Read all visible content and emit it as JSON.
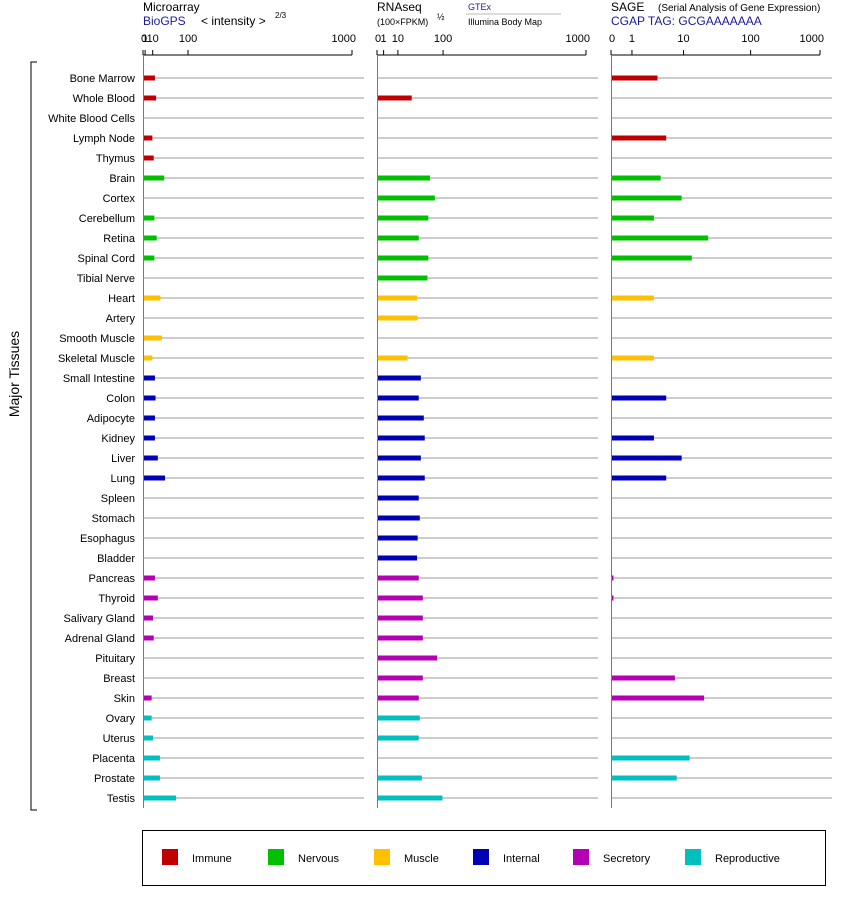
{
  "chart_data": {
    "type": "bar",
    "group_label": "Major Tissues",
    "categories": [
      "Bone Marrow",
      "Whole Blood",
      "White Blood Cells",
      "Lymph Node",
      "Thymus",
      "Brain",
      "Cortex",
      "Cerebellum",
      "Retina",
      "Spinal Cord",
      "Tibial Nerve",
      "Heart",
      "Artery",
      "Smooth Muscle",
      "Skeletal Muscle",
      "Small Intestine",
      "Colon",
      "Adipocyte",
      "Kidney",
      "Liver",
      "Lung",
      "Spleen",
      "Stomach",
      "Esophagus",
      "Bladder",
      "Pancreas",
      "Thyroid",
      "Salivary Gland",
      "Adrenal Gland",
      "Pituitary",
      "Breast",
      "Skin",
      "Ovary",
      "Uterus",
      "Placenta",
      "Prostate",
      "Testis"
    ],
    "category_groups": [
      "Immune",
      "Immune",
      "Immune",
      "Immune",
      "Immune",
      "Nervous",
      "Nervous",
      "Nervous",
      "Nervous",
      "Nervous",
      "Nervous",
      "Muscle",
      "Muscle",
      "Muscle",
      "Muscle",
      "Internal",
      "Internal",
      "Internal",
      "Internal",
      "Internal",
      "Internal",
      "Internal",
      "Internal",
      "Internal",
      "Internal",
      "Secretory",
      "Secretory",
      "Secretory",
      "Secretory",
      "Secretory",
      "Secretory",
      "Secretory",
      "Reproductive",
      "Reproductive",
      "Reproductive",
      "Reproductive",
      "Reproductive"
    ],
    "group_colors": {
      "Immune": "#c00000",
      "Nervous": "#00c000",
      "Muscle": "#ffc000",
      "Internal": "#0000b4",
      "Secretory": "#b400b4",
      "Reproductive": "#00bfbf"
    },
    "panels": [
      {
        "title": "Microarray",
        "source_label": "BioGPS",
        "scale_label": "< intensity >",
        "scale_exponent": "2/3",
        "axis_ticks": [
          "0",
          "1",
          "10",
          "100",
          "1000"
        ],
        "xlim": [
          0,
          1000
        ],
        "scale": "power-2/3",
        "values": [
          12,
          14,
          null,
          8,
          10,
          30,
          null,
          11,
          15,
          11,
          null,
          22,
          null,
          25,
          8,
          12,
          13,
          12,
          12,
          17,
          32,
          null,
          null,
          null,
          null,
          12,
          17,
          9,
          10,
          null,
          null,
          7,
          7,
          9,
          21,
          21,
          60
        ]
      },
      {
        "title": "RNAseq",
        "scale_label": "(100×FPKM)",
        "scale_exponent": "½",
        "source_label": "GTEx",
        "sub_source_label": "Illumina Body Map",
        "axis_ticks": [
          "0",
          "1",
          "10",
          "100",
          "1000"
        ],
        "xlim": [
          0,
          1000
        ],
        "scale": "sqrt",
        "values": [
          null,
          26,
          null,
          null,
          null,
          62,
          74,
          58,
          38,
          58,
          56,
          35,
          36,
          null,
          20,
          42,
          38,
          48,
          50,
          42,
          50,
          38,
          40,
          36,
          35,
          38,
          46,
          46,
          46,
          80,
          46,
          38,
          40,
          38,
          null,
          44,
          95
        ]
      },
      {
        "title": "SAGE",
        "title_note": "(Serial Analysis of Gene Expression)",
        "source_label": "CGAP TAG: GCGAAAAAAA",
        "axis_ticks": [
          "0",
          "1",
          "10",
          "100",
          "1000"
        ],
        "xlim": [
          0,
          1000
        ],
        "scale": "log1p",
        "values": [
          3.5,
          null,
          null,
          5,
          null,
          4,
          9,
          3,
          23,
          13,
          null,
          3,
          null,
          null,
          3,
          null,
          5,
          null,
          3,
          9,
          5,
          null,
          null,
          null,
          null,
          0.05,
          0.05,
          null,
          null,
          null,
          7,
          20,
          null,
          null,
          12,
          7.5,
          null
        ]
      }
    ],
    "legend": [
      "Immune",
      "Nervous",
      "Muscle",
      "Internal",
      "Secretory",
      "Reproductive"
    ]
  }
}
